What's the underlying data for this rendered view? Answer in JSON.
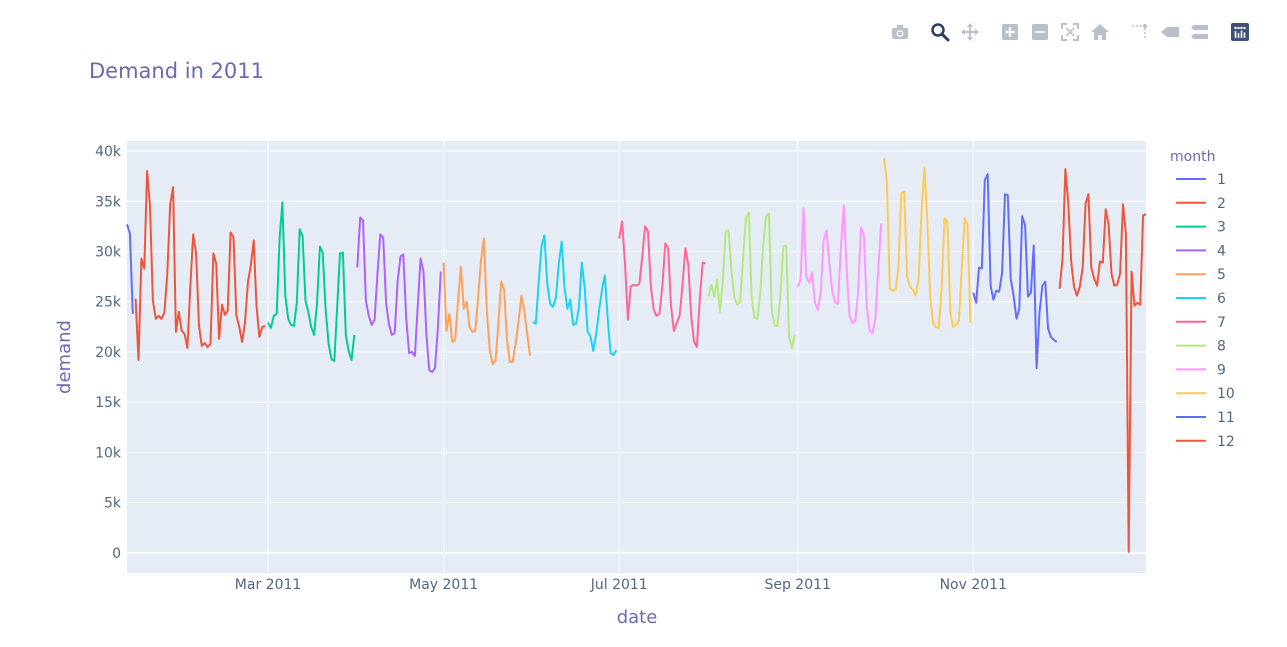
{
  "modebar": {
    "buttons": [
      {
        "name": "camera-icon",
        "title": "Download plot as a png"
      },
      {
        "name": "zoom-icon",
        "title": "Zoom"
      },
      {
        "name": "pan-icon",
        "title": "Pan"
      },
      {
        "name": "zoom-in-icon",
        "title": "Zoom in"
      },
      {
        "name": "zoom-out-icon",
        "title": "Zoom out"
      },
      {
        "name": "autoscale-icon",
        "title": "Autoscale"
      },
      {
        "name": "home-icon",
        "title": "Reset axes"
      },
      {
        "name": "spike-lines-icon",
        "title": "Toggle Spike Lines"
      },
      {
        "name": "hover-closest-icon",
        "title": "Show closest data on hover"
      },
      {
        "name": "hover-compare-icon",
        "title": "Compare data on hover"
      },
      {
        "name": "plotly-logo-icon",
        "title": "Produced with Plotly"
      }
    ],
    "active_color": "#2a3f5f",
    "inactive_color": "#b9bfcb"
  },
  "chart_data": {
    "type": "line",
    "title": "Demand in 2011",
    "xlabel": "date",
    "ylabel": "demand",
    "x_range": [
      "2011-01-11",
      "2011-12-31"
    ],
    "ylim": [
      -2000,
      41000
    ],
    "y_ticks": [
      0,
      5000,
      10000,
      15000,
      20000,
      25000,
      30000,
      35000,
      40000
    ],
    "y_tick_labels": [
      "0",
      "5k",
      "10k",
      "15k",
      "20k",
      "25k",
      "30k",
      "35k",
      "40k"
    ],
    "x_ticks": [
      "2011-03-01",
      "2011-05-01",
      "2011-07-01",
      "2011-09-01",
      "2011-11-01"
    ],
    "x_tick_labels": [
      "Mar 2011",
      "May 2011",
      "Jul 2011",
      "Sep 2011",
      "Nov 2011"
    ],
    "grid": true,
    "legend_title": "month",
    "legend_position": "right",
    "series": [
      {
        "name": "1",
        "color": "#636efa",
        "x": [
          "2011-01-11",
          "2011-01-12",
          "2011-01-13"
        ],
        "y": [
          32700,
          31800,
          23800
        ]
      },
      {
        "name": "2",
        "color": "#ef553b",
        "x": [
          "2011-01-14",
          "2011-01-15",
          "2011-01-16",
          "2011-01-17",
          "2011-01-18",
          "2011-01-19",
          "2011-01-20",
          "2011-01-21",
          "2011-01-22",
          "2011-01-23",
          "2011-01-24",
          "2011-01-25",
          "2011-01-26",
          "2011-01-27",
          "2011-01-28",
          "2011-01-29",
          "2011-01-30",
          "2011-01-31",
          "2011-02-01",
          "2011-02-02",
          "2011-02-03",
          "2011-02-04",
          "2011-02-05",
          "2011-02-06",
          "2011-02-07",
          "2011-02-08",
          "2011-02-09",
          "2011-02-10",
          "2011-02-11",
          "2011-02-12",
          "2011-02-13",
          "2011-02-14",
          "2011-02-15",
          "2011-02-16",
          "2011-02-17",
          "2011-02-18",
          "2011-02-19",
          "2011-02-20",
          "2011-02-21",
          "2011-02-22",
          "2011-02-23",
          "2011-02-24",
          "2011-02-25",
          "2011-02-26",
          "2011-02-27",
          "2011-02-28"
        ],
        "y": [
          25300,
          19200,
          29300,
          28300,
          38000,
          34500,
          25100,
          23300,
          23600,
          23300,
          23900,
          27800,
          34700,
          36400,
          22000,
          24000,
          22100,
          21800,
          20400,
          26500,
          31700,
          29800,
          22600,
          20600,
          20900,
          20500,
          20800,
          29800,
          28800,
          21300,
          24700,
          23700,
          24100,
          31900,
          31400,
          23600,
          22500,
          21000,
          22900,
          26900,
          28600,
          31100,
          24600,
          21500,
          22500,
          22600
        ]
      },
      {
        "name": "3",
        "color": "#00cc96",
        "x": [
          "2011-03-01",
          "2011-03-02",
          "2011-03-03",
          "2011-03-04",
          "2011-03-05",
          "2011-03-06",
          "2011-03-07",
          "2011-03-08",
          "2011-03-09",
          "2011-03-10",
          "2011-03-11",
          "2011-03-12",
          "2011-03-13",
          "2011-03-14",
          "2011-03-15",
          "2011-03-16",
          "2011-03-17",
          "2011-03-18",
          "2011-03-19",
          "2011-03-20",
          "2011-03-21",
          "2011-03-22",
          "2011-03-23",
          "2011-03-24",
          "2011-03-25",
          "2011-03-26",
          "2011-03-27",
          "2011-03-28",
          "2011-03-29",
          "2011-03-30",
          "2011-03-31"
        ],
        "y": [
          22900,
          22400,
          23600,
          23800,
          31300,
          34900,
          25600,
          23300,
          22700,
          22600,
          24900,
          32200,
          31500,
          25100,
          24000,
          22500,
          21700,
          24800,
          30500,
          29900,
          24300,
          20900,
          19300,
          19100,
          24300,
          29800,
          29900,
          21700,
          20100,
          19200,
          21700
        ]
      },
      {
        "name": "4",
        "color": "#ab63fa",
        "x": [
          "2011-04-01",
          "2011-04-02",
          "2011-04-03",
          "2011-04-04",
          "2011-04-05",
          "2011-04-06",
          "2011-04-07",
          "2011-04-08",
          "2011-04-09",
          "2011-04-10",
          "2011-04-11",
          "2011-04-12",
          "2011-04-13",
          "2011-04-14",
          "2011-04-15",
          "2011-04-16",
          "2011-04-17",
          "2011-04-18",
          "2011-04-19",
          "2011-04-20",
          "2011-04-21",
          "2011-04-22",
          "2011-04-23",
          "2011-04-24",
          "2011-04-25",
          "2011-04-26",
          "2011-04-27",
          "2011-04-28",
          "2011-04-29",
          "2011-04-30"
        ],
        "y": [
          28400,
          33400,
          33100,
          25100,
          23600,
          22700,
          23200,
          27700,
          31700,
          31400,
          24900,
          22800,
          21700,
          21900,
          27000,
          29500,
          29700,
          23400,
          19900,
          20000,
          19600,
          24500,
          29300,
          28000,
          21800,
          18200,
          18000,
          18400,
          22400,
          28000
        ]
      },
      {
        "name": "5",
        "color": "#ffa15a",
        "x": [
          "2011-05-01",
          "2011-05-02",
          "2011-05-03",
          "2011-05-04",
          "2011-05-05",
          "2011-05-06",
          "2011-05-07",
          "2011-05-08",
          "2011-05-09",
          "2011-05-10",
          "2011-05-11",
          "2011-05-12",
          "2011-05-13",
          "2011-05-14",
          "2011-05-15",
          "2011-05-16",
          "2011-05-17",
          "2011-05-18",
          "2011-05-19",
          "2011-05-20",
          "2011-05-21",
          "2011-05-22",
          "2011-05-23",
          "2011-05-24",
          "2011-05-25",
          "2011-05-26",
          "2011-05-27",
          "2011-05-28",
          "2011-05-29",
          "2011-05-30",
          "2011-05-31"
        ],
        "y": [
          28900,
          22100,
          23800,
          21000,
          21200,
          25000,
          28500,
          24300,
          25000,
          22500,
          22000,
          22100,
          25500,
          29200,
          31300,
          24100,
          20300,
          18800,
          19100,
          22700,
          27000,
          26200,
          21200,
          19000,
          19000,
          20800,
          23000,
          25600,
          24200,
          21900,
          19600
        ]
      },
      {
        "name": "6",
        "color": "#19d3f3",
        "x": [
          "2011-06-01",
          "2011-06-02",
          "2011-06-03",
          "2011-06-04",
          "2011-06-05",
          "2011-06-06",
          "2011-06-07",
          "2011-06-08",
          "2011-06-09",
          "2011-06-10",
          "2011-06-11",
          "2011-06-12",
          "2011-06-13",
          "2011-06-14",
          "2011-06-15",
          "2011-06-16",
          "2011-06-17",
          "2011-06-18",
          "2011-06-19",
          "2011-06-20",
          "2011-06-21",
          "2011-06-22",
          "2011-06-23",
          "2011-06-24",
          "2011-06-25",
          "2011-06-26",
          "2011-06-27",
          "2011-06-28",
          "2011-06-29",
          "2011-06-30"
        ],
        "y": [
          23000,
          22800,
          26800,
          30500,
          31600,
          26800,
          24800,
          24500,
          25400,
          28800,
          31000,
          26400,
          24300,
          25200,
          22700,
          22800,
          24400,
          28900,
          26400,
          22000,
          21600,
          20100,
          21800,
          24100,
          26200,
          27600,
          23300,
          19900,
          19700,
          20200
        ]
      },
      {
        "name": "7",
        "color": "#ff6692",
        "x": [
          "2011-07-01",
          "2011-07-02",
          "2011-07-03",
          "2011-07-04",
          "2011-07-05",
          "2011-07-06",
          "2011-07-07",
          "2011-07-08",
          "2011-07-09",
          "2011-07-10",
          "2011-07-11",
          "2011-07-12",
          "2011-07-13",
          "2011-07-14",
          "2011-07-15",
          "2011-07-16",
          "2011-07-17",
          "2011-07-18",
          "2011-07-19",
          "2011-07-20",
          "2011-07-21",
          "2011-07-22",
          "2011-07-23",
          "2011-07-24",
          "2011-07-25",
          "2011-07-26",
          "2011-07-27",
          "2011-07-28",
          "2011-07-29",
          "2011-07-30",
          "2011-07-31"
        ],
        "y": [
          31300,
          33000,
          28800,
          23200,
          26500,
          26700,
          26600,
          26800,
          29500,
          32500,
          32000,
          26500,
          24200,
          23600,
          23800,
          26600,
          30800,
          30300,
          24600,
          22100,
          22900,
          23600,
          26800,
          30300,
          28700,
          23600,
          21000,
          20500,
          25300,
          28900,
          28800
        ]
      },
      {
        "name": "8",
        "color": "#b6e880",
        "x": [
          "2011-08-01",
          "2011-08-02",
          "2011-08-03",
          "2011-08-04",
          "2011-08-05",
          "2011-08-06",
          "2011-08-07",
          "2011-08-08",
          "2011-08-09",
          "2011-08-10",
          "2011-08-11",
          "2011-08-12",
          "2011-08-13",
          "2011-08-14",
          "2011-08-15",
          "2011-08-16",
          "2011-08-17",
          "2011-08-18",
          "2011-08-19",
          "2011-08-20",
          "2011-08-21",
          "2011-08-22",
          "2011-08-23",
          "2011-08-24",
          "2011-08-25",
          "2011-08-26",
          "2011-08-27",
          "2011-08-28",
          "2011-08-29",
          "2011-08-30",
          "2011-08-31"
        ],
        "y": [
          25500,
          26700,
          25500,
          27200,
          24000,
          27200,
          32000,
          32100,
          28000,
          25400,
          24700,
          25000,
          29200,
          33300,
          33900,
          25500,
          23400,
          23300,
          25800,
          30600,
          33500,
          33800,
          24100,
          22600,
          22600,
          25700,
          30500,
          30600,
          21500,
          20400,
          21700
        ]
      },
      {
        "name": "9",
        "color": "#ff97ff",
        "x": [
          "2011-09-01",
          "2011-09-02",
          "2011-09-03",
          "2011-09-04",
          "2011-09-05",
          "2011-09-06",
          "2011-09-07",
          "2011-09-08",
          "2011-09-09",
          "2011-09-10",
          "2011-09-11",
          "2011-09-12",
          "2011-09-13",
          "2011-09-14",
          "2011-09-15",
          "2011-09-16",
          "2011-09-17",
          "2011-09-18",
          "2011-09-19",
          "2011-09-20",
          "2011-09-21",
          "2011-09-22",
          "2011-09-23",
          "2011-09-24",
          "2011-09-25",
          "2011-09-26",
          "2011-09-27",
          "2011-09-28",
          "2011-09-29",
          "2011-09-30"
        ],
        "y": [
          26500,
          27200,
          34300,
          27500,
          26900,
          27900,
          24900,
          24200,
          25800,
          31100,
          32100,
          28800,
          26100,
          24900,
          24800,
          30400,
          34600,
          28300,
          23600,
          22900,
          23100,
          25900,
          32400,
          31600,
          24400,
          22100,
          21900,
          23300,
          28300,
          32800
        ]
      },
      {
        "name": "10",
        "color": "#fecb52",
        "x": [
          "2011-10-01",
          "2011-10-02",
          "2011-10-03",
          "2011-10-04",
          "2011-10-05",
          "2011-10-06",
          "2011-10-07",
          "2011-10-08",
          "2011-10-09",
          "2011-10-10",
          "2011-10-11",
          "2011-10-12",
          "2011-10-13",
          "2011-10-14",
          "2011-10-15",
          "2011-10-16",
          "2011-10-17",
          "2011-10-18",
          "2011-10-19",
          "2011-10-20",
          "2011-10-21",
          "2011-10-22",
          "2011-10-23",
          "2011-10-24",
          "2011-10-25",
          "2011-10-26",
          "2011-10-27",
          "2011-10-28",
          "2011-10-29",
          "2011-10-30",
          "2011-10-31"
        ],
        "y": [
          39300,
          36900,
          26300,
          26100,
          26200,
          28400,
          35800,
          35900,
          27500,
          26500,
          26200,
          25600,
          27300,
          34000,
          38300,
          33400,
          25600,
          22900,
          22500,
          22400,
          26300,
          33300,
          33000,
          23900,
          22500,
          22700,
          23100,
          28400,
          33300,
          32700,
          22900
        ]
      },
      {
        "name": "11",
        "color": "#636efa",
        "x": [
          "2011-11-01",
          "2011-11-02",
          "2011-11-03",
          "2011-11-04",
          "2011-11-05",
          "2011-11-06",
          "2011-11-07",
          "2011-11-08",
          "2011-11-09",
          "2011-11-10",
          "2011-11-11",
          "2011-11-12",
          "2011-11-13",
          "2011-11-14",
          "2011-11-15",
          "2011-11-16",
          "2011-11-17",
          "2011-11-18",
          "2011-11-19",
          "2011-11-20",
          "2011-11-21",
          "2011-11-22",
          "2011-11-23",
          "2011-11-24",
          "2011-11-25",
          "2011-11-26",
          "2011-11-27",
          "2011-11-28",
          "2011-11-29",
          "2011-11-30"
        ],
        "y": [
          25900,
          24900,
          28400,
          28300,
          37100,
          37700,
          26600,
          25200,
          26100,
          26000,
          27900,
          35700,
          35600,
          27300,
          25600,
          23300,
          24300,
          33500,
          32600,
          25500,
          25900,
          30600,
          18400,
          23900,
          26600,
          27000,
          22300,
          21500,
          21200,
          21000
        ]
      },
      {
        "name": "12",
        "color": "#ef553b",
        "x": [
          "2011-12-01",
          "2011-12-02",
          "2011-12-03",
          "2011-12-04",
          "2011-12-05",
          "2011-12-06",
          "2011-12-07",
          "2011-12-08",
          "2011-12-09",
          "2011-12-10",
          "2011-12-11",
          "2011-12-12",
          "2011-12-13",
          "2011-12-14",
          "2011-12-15",
          "2011-12-16",
          "2011-12-17",
          "2011-12-18",
          "2011-12-19",
          "2011-12-20",
          "2011-12-21",
          "2011-12-22",
          "2011-12-23",
          "2011-12-24",
          "2011-12-25",
          "2011-12-26",
          "2011-12-27",
          "2011-12-28",
          "2011-12-29",
          "2011-12-30",
          "2011-12-31"
        ],
        "y": [
          26300,
          29200,
          38200,
          34800,
          29000,
          26500,
          25600,
          26500,
          28400,
          34800,
          35700,
          28400,
          27300,
          26600,
          29000,
          28900,
          34200,
          32700,
          27800,
          26600,
          26700,
          27800,
          34700,
          31800,
          100,
          28000,
          24600,
          24900,
          24700,
          33600,
          33700
        ]
      }
    ]
  }
}
